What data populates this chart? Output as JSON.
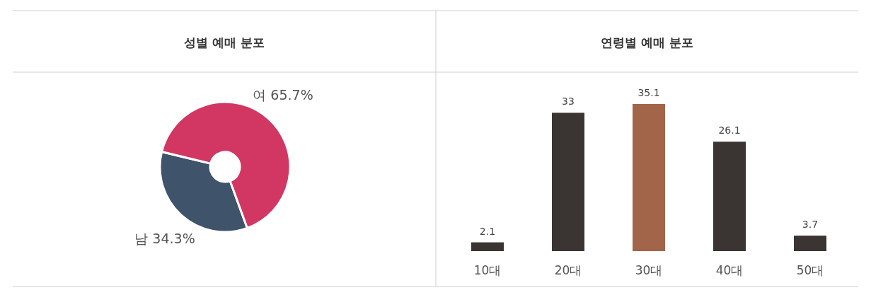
{
  "chart_data": [
    {
      "type": "donut",
      "title": "성별 예매 분포",
      "categories": [
        "남",
        "여"
      ],
      "values": [
        34.3,
        65.7
      ],
      "colors": [
        "#3f536b",
        "#d13762"
      ],
      "value_labels": [
        "34.3%",
        "65.7%"
      ]
    },
    {
      "type": "bar",
      "title": "연령별 예매 분포",
      "categories": [
        "10대",
        "20대",
        "30대",
        "40대",
        "50대"
      ],
      "values": [
        2.1,
        33,
        35.1,
        26.1,
        3.7
      ],
      "colors": [
        "#3a3532",
        "#3a3532",
        "#a3654a",
        "#3a3532",
        "#3a3532"
      ],
      "data_labels": true
    }
  ]
}
